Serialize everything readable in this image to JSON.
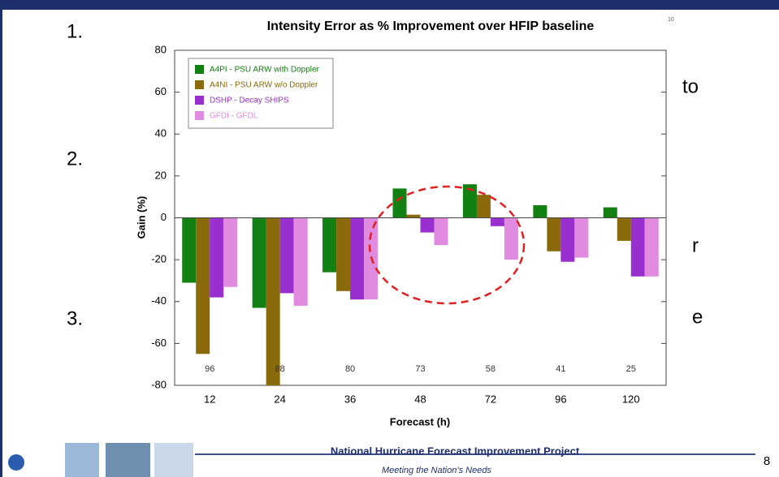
{
  "slide": {
    "items": [
      "1.",
      "2.",
      "3."
    ],
    "fragments": [
      "to",
      "r",
      "e"
    ],
    "footer_title": "National Hurricane Forecast Improvement Project",
    "footer_subtitle": "Meeting the Nation’s Needs",
    "page_number": "8"
  },
  "chart_data": {
    "type": "bar",
    "title": "Intensity Error as % Improvement over HFIP baseline",
    "corner_note": "10",
    "x_label": "Forecast (h)",
    "y_label": "Gain (%)",
    "categories": [
      "12",
      "24",
      "36",
      "48",
      "72",
      "96",
      "120"
    ],
    "series": [
      {
        "name": "A4PI - PSU ARW with Doppler",
        "color": "#128012",
        "values": [
          -31,
          -43,
          -26,
          14,
          16,
          6,
          5
        ]
      },
      {
        "name": "A4NI - PSU ARW w/o Doppler",
        "color": "#8a6a0a",
        "values": [
          -65,
          -80,
          -35,
          1.5,
          11,
          -16,
          -11
        ]
      },
      {
        "name": "DSHP - Decay SHIPS",
        "color": "#9a2fd0",
        "values": [
          -38,
          -36,
          -39,
          -7,
          -4,
          -21,
          -28
        ]
      },
      {
        "name": "GFDI - GFDL",
        "color": "#e08ae0",
        "values": [
          -33,
          -42,
          -39,
          -13,
          -20,
          -19,
          -28
        ]
      }
    ],
    "annotations": [
      96,
      88,
      80,
      73,
      58,
      41,
      25
    ],
    "ylim": [
      -80,
      80
    ],
    "yticks": [
      -80,
      -60,
      -40,
      -20,
      0,
      20,
      40,
      60,
      80
    ],
    "grid": false,
    "legend": "upper left"
  }
}
